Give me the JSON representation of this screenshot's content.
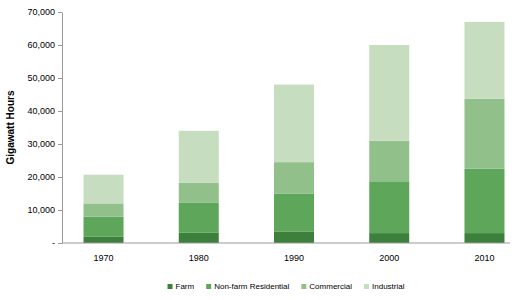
{
  "chart_data": {
    "type": "bar",
    "stacked": true,
    "grid": false,
    "legend": "bottom",
    "y_label": "Gigawatt Hours",
    "categories": [
      "1970",
      "1980",
      "1990",
      "2000",
      "2010"
    ],
    "series": [
      {
        "name": "Farm",
        "color": "#3c803c",
        "values": [
          2000,
          3200,
          3500,
          3000,
          3000
        ]
      },
      {
        "name": "Non-farm Residential",
        "color": "#5da65a",
        "values": [
          6000,
          9100,
          11500,
          15700,
          19500
        ]
      },
      {
        "name": "Commercial",
        "color": "#92c08a",
        "values": [
          4000,
          6000,
          9500,
          12300,
          21200
        ]
      },
      {
        "name": "Industrial",
        "color": "#c6ddc0",
        "values": [
          8700,
          15700,
          23500,
          29000,
          23300
        ]
      }
    ],
    "ylim": [
      0,
      70000
    ],
    "yticks": [
      {
        "value": 0,
        "label": "-"
      },
      {
        "value": 10000,
        "label": "10,000"
      },
      {
        "value": 20000,
        "label": "20,000"
      },
      {
        "value": 30000,
        "label": "30,000"
      },
      {
        "value": 40000,
        "label": "40,000"
      },
      {
        "value": 50000,
        "label": "50,000"
      },
      {
        "value": 60000,
        "label": "60,000"
      },
      {
        "value": 70000,
        "label": "70,000"
      }
    ]
  }
}
